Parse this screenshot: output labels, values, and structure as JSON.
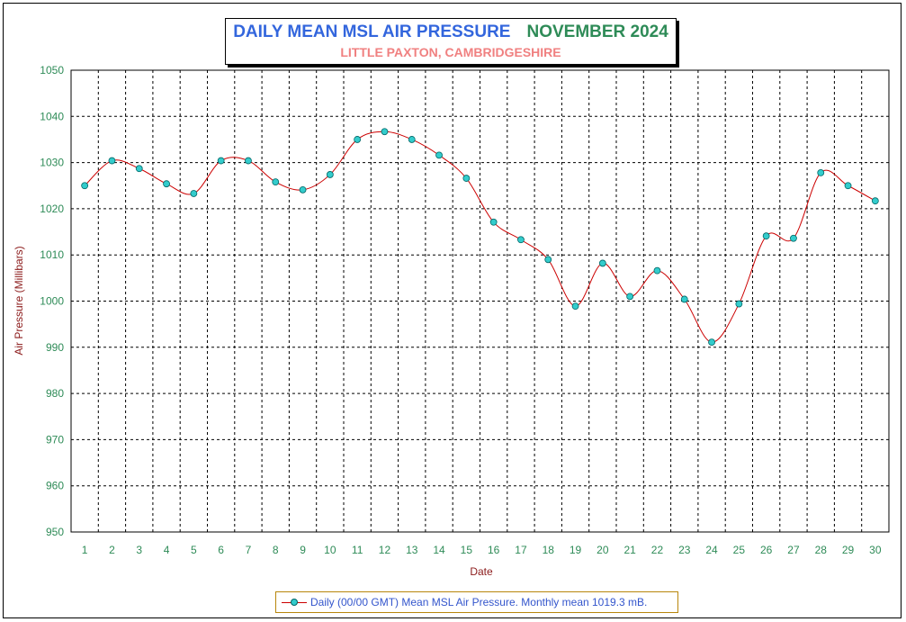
{
  "title": {
    "main": "DAILY MEAN MSL AIR PRESSURE",
    "month": "NOVEMBER 2024",
    "subtitle": "LITTLE PAXTON, CAMBRIDGESHIRE"
  },
  "legend": {
    "label": "Daily (00/00 GMT) Mean MSL Air Pressure. Monthly mean 1019.3 mB."
  },
  "colors": {
    "line": "#cc0000",
    "marker": "#33cccc",
    "title_main": "#3366dd",
    "title_month": "#2e8b57",
    "subtitle": "#f08080",
    "tick_labels": "#2e8b57",
    "axis_titles": "#8b1a1a"
  },
  "chart_data": {
    "type": "line",
    "title": "DAILY MEAN MSL AIR PRESSURE   NOVEMBER 2024",
    "subtitle": "LITTLE PAXTON, CAMBRIDGESHIRE",
    "xlabel": "Date",
    "ylabel": "Air Pressure (Millibars)",
    "x": [
      1,
      2,
      3,
      4,
      5,
      6,
      7,
      8,
      9,
      10,
      11,
      12,
      13,
      14,
      15,
      16,
      17,
      18,
      19,
      20,
      21,
      22,
      23,
      24,
      25,
      26,
      27,
      28,
      29,
      30
    ],
    "series": [
      {
        "name": "Daily (00/00 GMT) Mean MSL Air Pressure",
        "values": [
          1025.0,
          1030.4,
          1028.7,
          1025.4,
          1023.3,
          1030.4,
          1030.4,
          1025.8,
          1024.1,
          1027.4,
          1035.0,
          1036.7,
          1035.0,
          1031.6,
          1026.6,
          1017.1,
          1013.3,
          1009.0,
          998.9,
          1008.2,
          1001.0,
          1006.6,
          1000.4,
          991.1,
          999.4,
          1014.1,
          1013.6,
          1027.8,
          1025.0,
          1021.7
        ]
      }
    ],
    "ylim": [
      950,
      1050
    ],
    "yticks": [
      950,
      960,
      970,
      980,
      990,
      1000,
      1010,
      1020,
      1030,
      1040,
      1050
    ],
    "grid": true,
    "legend_position": "bottom"
  }
}
